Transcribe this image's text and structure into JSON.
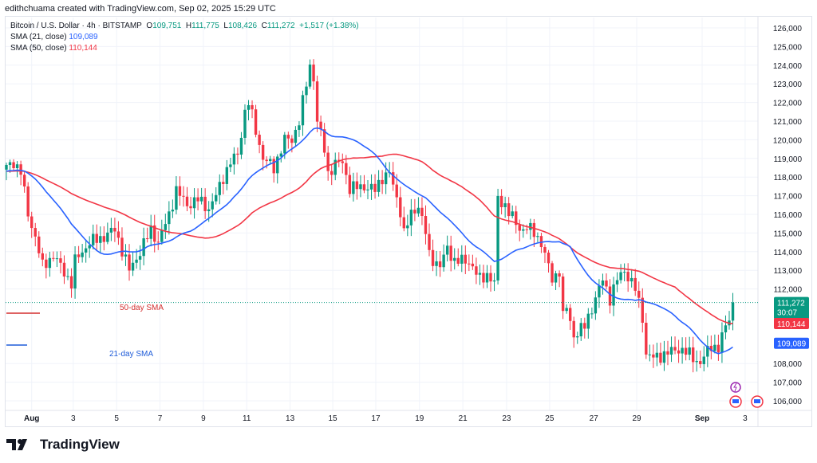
{
  "credit": "edithchuama created with TradingView.com, Sep 02, 2025 15:29 UTC",
  "legend": {
    "symbol": "Bitcoin / U.S. Dollar · 4h · BITSTAMP",
    "o_label": "O",
    "o": "109,751",
    "h_label": "H",
    "h": "111,775",
    "l_label": "L",
    "l": "108,426",
    "c_label": "C",
    "c": "111,272",
    "change": "+1,517 (+1.38%)",
    "sma21_label": "SMA (21, close)",
    "sma21": "109,089",
    "sma50_label": "SMA (50, close)",
    "sma50": "110,144"
  },
  "logo": "TradingView",
  "chart_data": {
    "type": "candlestick",
    "timeframe": "4h",
    "ylim": [
      105500,
      126500
    ],
    "y_ticks": [
      126000,
      125000,
      124000,
      123000,
      122000,
      121000,
      120000,
      119000,
      118000,
      117000,
      116000,
      115000,
      114000,
      113000,
      112000,
      108000,
      107000,
      106000
    ],
    "x_ticks": [
      {
        "label": "Aug",
        "i": 7
      },
      {
        "label": "3",
        "i": 18.5
      },
      {
        "label": "5",
        "i": 30.5
      },
      {
        "label": "7",
        "i": 42.5
      },
      {
        "label": "9",
        "i": 54.5
      },
      {
        "label": "11",
        "i": 66.5
      },
      {
        "label": "13",
        "i": 78.5
      },
      {
        "label": "15",
        "i": 90.3
      },
      {
        "label": "17",
        "i": 102.2
      },
      {
        "label": "19",
        "i": 114.3
      },
      {
        "label": "21",
        "i": 126.3
      },
      {
        "label": "23",
        "i": 138.4
      },
      {
        "label": "25",
        "i": 150.3
      },
      {
        "label": "27",
        "i": 162.5
      },
      {
        "label": "29",
        "i": 174.4
      },
      {
        "label": "Sep",
        "i": 192.5
      },
      {
        "label": "3",
        "i": 204.4
      }
    ],
    "n_candles": 202,
    "close_keypoints": [
      [
        0,
        118.5
      ],
      [
        2,
        118.8
      ],
      [
        4,
        118.3
      ],
      [
        6,
        116
      ],
      [
        8,
        114.8
      ],
      [
        10,
        113.2
      ],
      [
        13,
        113.8
      ],
      [
        15,
        113.2
      ],
      [
        18,
        112.3
      ],
      [
        19,
        113.5
      ],
      [
        23,
        114.5
      ],
      [
        27,
        114.8
      ],
      [
        30,
        115.2
      ],
      [
        34,
        113
      ],
      [
        37,
        114
      ],
      [
        40,
        115.2
      ],
      [
        42,
        114.5
      ],
      [
        45,
        116
      ],
      [
        47,
        117.3
      ],
      [
        50,
        116.5
      ],
      [
        53,
        116.8
      ],
      [
        56,
        116.3
      ],
      [
        58,
        117
      ],
      [
        60,
        118
      ],
      [
        62,
        118.8
      ],
      [
        64,
        119.2
      ],
      [
        66,
        121.5
      ],
      [
        67,
        122
      ],
      [
        69,
        120.5
      ],
      [
        71,
        119
      ],
      [
        74,
        118.5
      ],
      [
        77,
        120
      ],
      [
        79,
        120
      ],
      [
        81,
        121
      ],
      [
        83,
        123
      ],
      [
        84,
        124
      ],
      [
        85,
        123.3
      ],
      [
        86,
        121
      ],
      [
        88,
        119.5
      ],
      [
        89,
        118.2
      ],
      [
        91,
        118.7
      ],
      [
        93,
        118.8
      ],
      [
        95,
        117.4
      ],
      [
        99,
        117.5
      ],
      [
        102,
        117.3
      ],
      [
        104,
        118
      ],
      [
        106,
        118.2
      ],
      [
        109,
        116.2
      ],
      [
        110,
        115
      ],
      [
        112,
        116
      ],
      [
        114,
        116.5
      ],
      [
        116,
        115
      ],
      [
        117,
        113.8
      ],
      [
        120,
        113.2
      ],
      [
        122,
        114.2
      ],
      [
        124,
        113.5
      ],
      [
        126,
        113.5
      ],
      [
        128,
        113.5
      ],
      [
        131,
        112.5
      ],
      [
        133,
        112.8
      ],
      [
        135,
        112.3
      ],
      [
        136,
        116.8
      ],
      [
        138,
        116.5
      ],
      [
        140,
        115.8
      ],
      [
        142,
        115.2
      ],
      [
        144,
        115.3
      ],
      [
        146,
        115
      ],
      [
        148,
        114.5
      ],
      [
        151,
        112.5
      ],
      [
        153,
        113
      ],
      [
        154,
        110.5
      ],
      [
        155,
        111
      ],
      [
        157,
        109.5
      ],
      [
        160,
        110
      ],
      [
        163,
        111.5
      ],
      [
        165,
        112.5
      ],
      [
        167,
        111.5
      ],
      [
        169,
        112.5
      ],
      [
        171,
        113
      ],
      [
        174,
        112
      ],
      [
        176,
        110.5
      ],
      [
        177,
        108.5
      ],
      [
        179,
        108.3
      ],
      [
        182,
        108.5
      ],
      [
        186,
        108.8
      ],
      [
        189,
        108.5
      ],
      [
        192,
        108
      ],
      [
        195,
        109
      ],
      [
        197,
        108.8
      ],
      [
        199,
        110
      ],
      [
        200,
        110.5
      ],
      [
        201,
        111.272
      ]
    ],
    "series": [
      {
        "name": "SMA 21",
        "color": "#2962ff",
        "last": 109089
      },
      {
        "name": "SMA 50",
        "color": "#f23645",
        "last": 110144
      }
    ],
    "last_price": {
      "value": "111,272",
      "countdown": "30:07"
    },
    "annotations": [
      {
        "text": "50-day SMA",
        "color": "#d32f2f"
      },
      {
        "text": "21-day SMA",
        "color": "#1e5bd8"
      }
    ],
    "colors": {
      "up": "#089981",
      "down": "#f23645"
    }
  }
}
